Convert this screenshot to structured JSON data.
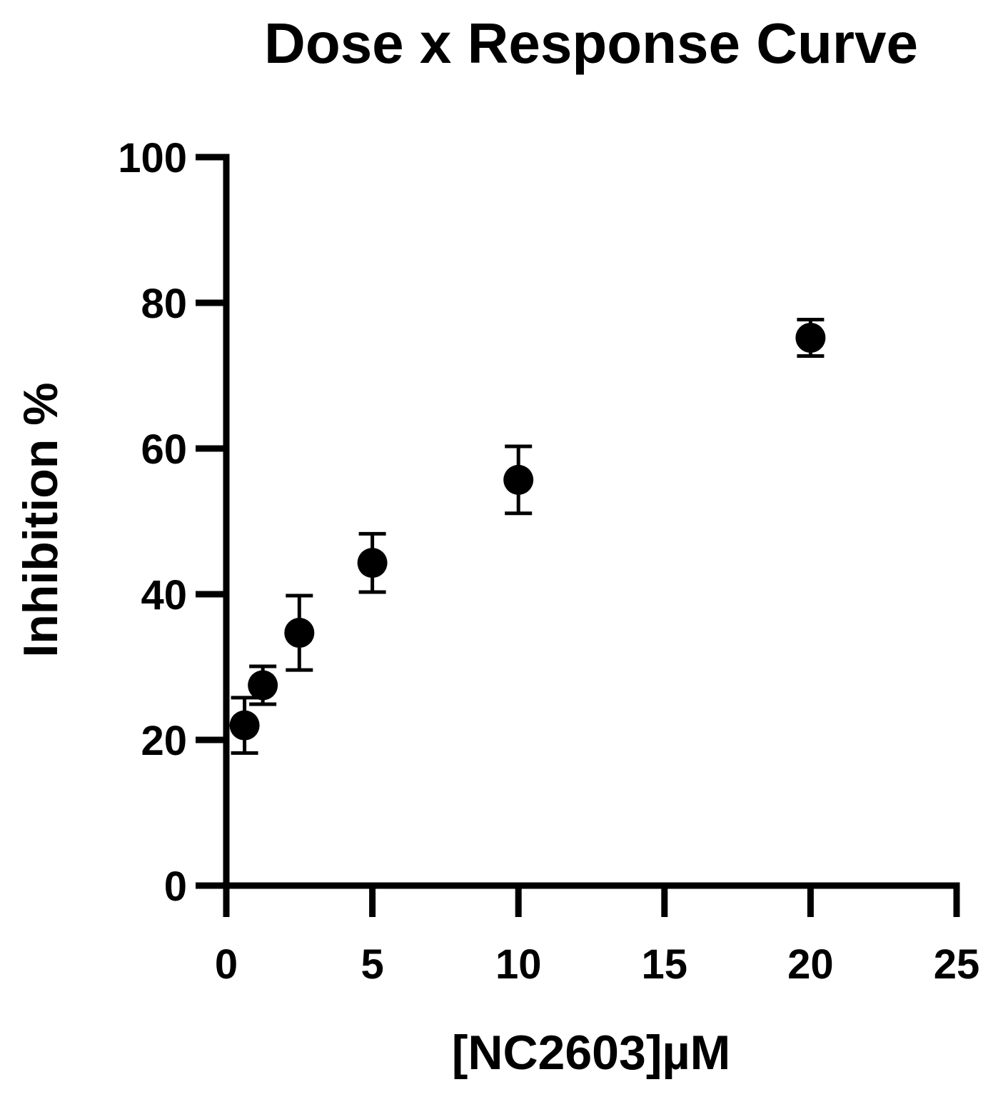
{
  "chart_data": {
    "type": "scatter",
    "title": "Dose x Response Curve",
    "xlabel": "[NC2603]µM",
    "ylabel": "Inhibition %",
    "xlim": [
      0,
      25
    ],
    "ylim": [
      0,
      100
    ],
    "xticks": [
      0,
      5,
      10,
      15,
      20,
      25
    ],
    "yticks": [
      0,
      20,
      40,
      60,
      80,
      100
    ],
    "grid": false,
    "legend": "none",
    "marker_color": "#000000",
    "series": [
      {
        "points": [
          {
            "x": 0.625,
            "y": 22.0,
            "err_low": 3.8,
            "err_high": 3.8
          },
          {
            "x": 1.25,
            "y": 27.5,
            "err_low": 2.6,
            "err_high": 2.6
          },
          {
            "x": 2.5,
            "y": 34.7,
            "err_low": 5.1,
            "err_high": 5.1
          },
          {
            "x": 5.0,
            "y": 44.3,
            "err_low": 4.0,
            "err_high": 4.0
          },
          {
            "x": 10.0,
            "y": 55.7,
            "err_low": 4.6,
            "err_high": 4.6
          },
          {
            "x": 20.0,
            "y": 75.2,
            "err_low": 2.5,
            "err_high": 2.5
          }
        ]
      }
    ]
  }
}
